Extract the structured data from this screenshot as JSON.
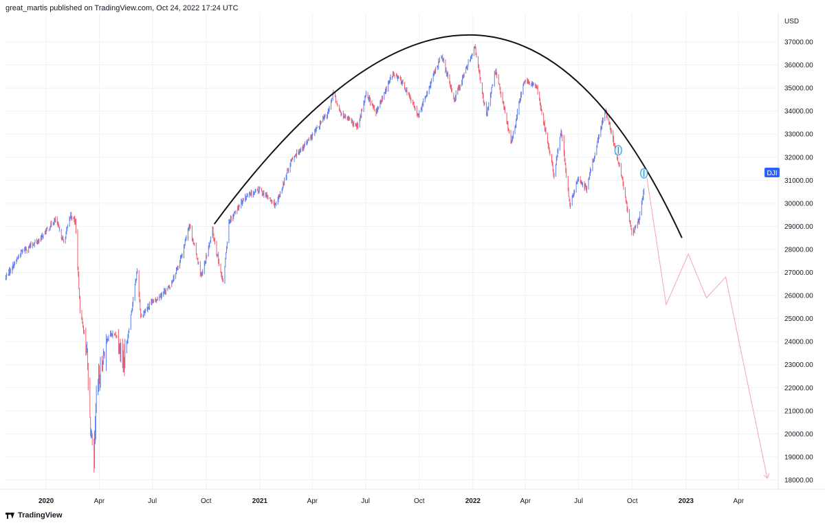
{
  "header": {
    "published_text": "great_martis published on TradingView.com, Oct 24, 2022 17:24 UTC"
  },
  "footer": {
    "brand": "TradingView",
    "logo_icon": "tradingview-logo-icon"
  },
  "colors": {
    "up": "#5b7cf0",
    "down": "#f05b6a",
    "grid": "#eff1f5",
    "curve": "#111111",
    "projection": "#f5a3ab",
    "badge": "#2962ff",
    "marker": "#3aa0d8"
  },
  "chart_data": {
    "type": "candlestick",
    "symbol": "DJI",
    "currency": "USD",
    "last_price_badge": "DJI",
    "ylim": [
      17700,
      37700
    ],
    "y_ticks": [
      "18000.00",
      "19000.00",
      "20000.00",
      "21000.00",
      "22000.00",
      "23000.00",
      "24000.00",
      "25000.00",
      "26000.00",
      "27000.00",
      "28000.00",
      "29000.00",
      "30000.00",
      "31000.00",
      "32000.00",
      "33000.00",
      "34000.00",
      "35000.00",
      "36000.00",
      "37000.00"
    ],
    "x_ticks": [
      {
        "date": "2020-01-01",
        "label": "2020",
        "bold": true
      },
      {
        "date": "2020-04-01",
        "label": "Apr",
        "bold": false
      },
      {
        "date": "2020-07-01",
        "label": "Jul",
        "bold": false
      },
      {
        "date": "2020-10-01",
        "label": "Oct",
        "bold": false
      },
      {
        "date": "2021-01-01",
        "label": "2021",
        "bold": true
      },
      {
        "date": "2021-04-01",
        "label": "Apr",
        "bold": false
      },
      {
        "date": "2021-07-01",
        "label": "Jul",
        "bold": false
      },
      {
        "date": "2021-10-01",
        "label": "Oct",
        "bold": false
      },
      {
        "date": "2022-01-01",
        "label": "2022",
        "bold": true
      },
      {
        "date": "2022-04-01",
        "label": "Apr",
        "bold": false
      },
      {
        "date": "2022-07-01",
        "label": "Jul",
        "bold": false
      },
      {
        "date": "2022-10-01",
        "label": "Oct",
        "bold": false
      },
      {
        "date": "2023-01-01",
        "label": "2023",
        "bold": true
      },
      {
        "date": "2023-04-01",
        "label": "Apr",
        "bold": false
      }
    ],
    "price_path": [
      [
        "2019-10-24",
        26800
      ],
      [
        "2019-11-20",
        27900
      ],
      [
        "2019-12-20",
        28400
      ],
      [
        "2020-01-17",
        29300
      ],
      [
        "2020-01-31",
        28300
      ],
      [
        "2020-02-12",
        29500
      ],
      [
        "2020-02-20",
        29200
      ],
      [
        "2020-02-28",
        25400
      ],
      [
        "2020-03-10",
        23800
      ],
      [
        "2020-03-17",
        20200
      ],
      [
        "2020-03-23",
        18600
      ],
      [
        "2020-03-27",
        21700
      ],
      [
        "2020-04-08",
        23400
      ],
      [
        "2020-04-17",
        24300
      ],
      [
        "2020-04-30",
        24300
      ],
      [
        "2020-05-14",
        23200
      ],
      [
        "2020-06-05",
        27100
      ],
      [
        "2020-06-11",
        25100
      ],
      [
        "2020-07-01",
        25700
      ],
      [
        "2020-07-31",
        26400
      ],
      [
        "2020-08-20",
        27700
      ],
      [
        "2020-09-02",
        29100
      ],
      [
        "2020-09-23",
        26800
      ],
      [
        "2020-10-12",
        28800
      ],
      [
        "2020-10-30",
        26500
      ],
      [
        "2020-11-09",
        29200
      ],
      [
        "2020-12-04",
        30200
      ],
      [
        "2020-12-31",
        30600
      ],
      [
        "2021-01-29",
        29900
      ],
      [
        "2021-02-24",
        31900
      ],
      [
        "2021-03-31",
        32900
      ],
      [
        "2021-04-29",
        34000
      ],
      [
        "2021-05-07",
        34800
      ],
      [
        "2021-05-19",
        33900
      ],
      [
        "2021-06-18",
        33300
      ],
      [
        "2021-07-02",
        34800
      ],
      [
        "2021-07-19",
        33900
      ],
      [
        "2021-08-16",
        35600
      ],
      [
        "2021-09-01",
        35300
      ],
      [
        "2021-09-30",
        33800
      ],
      [
        "2021-10-29",
        35800
      ],
      [
        "2021-11-08",
        36400
      ],
      [
        "2021-11-30",
        34500
      ],
      [
        "2022-01-04",
        36800
      ],
      [
        "2022-01-24",
        33800
      ],
      [
        "2022-02-09",
        35800
      ],
      [
        "2022-03-08",
        32600
      ],
      [
        "2022-03-29",
        35300
      ],
      [
        "2022-04-20",
        35100
      ],
      [
        "2022-05-20",
        31200
      ],
      [
        "2022-06-01",
        33200
      ],
      [
        "2022-06-16",
        29900
      ],
      [
        "2022-07-01",
        31100
      ],
      [
        "2022-07-14",
        30600
      ],
      [
        "2022-08-16",
        34100
      ],
      [
        "2022-09-13",
        31100
      ],
      [
        "2022-09-30",
        28700
      ],
      [
        "2022-10-12",
        29200
      ],
      [
        "2022-10-24",
        31100
      ]
    ],
    "cup_curve": {
      "start": [
        "2020-10-15",
        29100
      ],
      "peak": [
        "2022-01-01",
        37300
      ],
      "end": [
        "2022-12-25",
        28500
      ]
    },
    "projection": [
      [
        "2022-10-26",
        31100
      ],
      [
        "2022-11-28",
        25600
      ],
      [
        "2023-01-05",
        27800
      ],
      [
        "2023-02-05",
        25900
      ],
      [
        "2023-03-10",
        26800
      ],
      [
        "2023-05-20",
        18100
      ]
    ],
    "markers": [
      [
        "2022-09-07",
        32300
      ],
      [
        "2022-10-21",
        31300
      ]
    ]
  }
}
